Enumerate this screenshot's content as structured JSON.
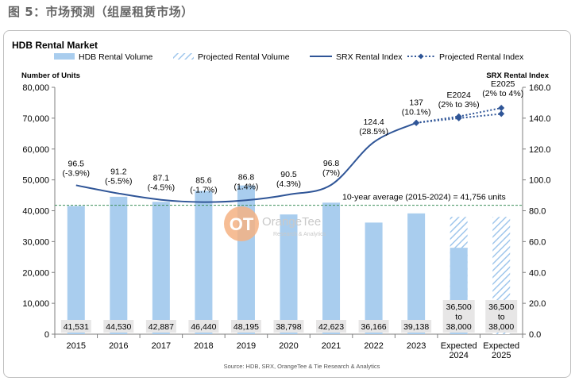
{
  "figure_title": "图 5：市场预测（组屋租赁市场）",
  "chart_data": {
    "type": "bar",
    "title": "HDB Rental Market",
    "ylabel_left": "Number of Units",
    "ylabel_right": "SRX Rental Index",
    "ylim_left": [
      0,
      80000
    ],
    "ylim_right": [
      0,
      160
    ],
    "left_ticks": [
      "0",
      "10,000",
      "20,000",
      "30,000",
      "40,000",
      "50,000",
      "60,000",
      "70,000",
      "80,000"
    ],
    "right_ticks": [
      "0.0",
      "20.0",
      "40.0",
      "60.0",
      "80.0",
      "100.0",
      "120.0",
      "140.0",
      "160.0"
    ],
    "categories": [
      [
        "2015"
      ],
      [
        "2016"
      ],
      [
        "2017"
      ],
      [
        "2018"
      ],
      [
        "2019"
      ],
      [
        "2020"
      ],
      [
        "2021"
      ],
      [
        "2022"
      ],
      [
        "2023"
      ],
      [
        "Expected",
        "2024"
      ],
      [
        "Expected",
        "2025"
      ]
    ],
    "legend": [
      {
        "label": "HDB Rental Volume",
        "kind": "bar"
      },
      {
        "label": "Projected Rental Volume",
        "kind": "hatch"
      },
      {
        "label": "SRX Rental Index",
        "kind": "line"
      },
      {
        "label": "Projected Rental Index",
        "kind": "dotted"
      }
    ],
    "volume": [
      41531,
      44530,
      42887,
      46440,
      48195,
      38798,
      42623,
      36166,
      39138,
      null,
      null
    ],
    "volume_labels": [
      [
        "41,531"
      ],
      [
        "44,530"
      ],
      [
        "42,887"
      ],
      [
        "46,440"
      ],
      [
        "48,195"
      ],
      [
        "38,798"
      ],
      [
        "42,623"
      ],
      [
        "36,166"
      ],
      [
        "39,138"
      ],
      [
        "36,500",
        "to",
        "38,000"
      ],
      [
        "36,500",
        "to",
        "38,000"
      ]
    ],
    "projected_volume": [
      {
        "index": 9,
        "low": 28000,
        "high": 38000
      },
      {
        "index": 10,
        "low": 0,
        "high": 38000
      }
    ],
    "rental_index": [
      96.5,
      91.2,
      87.1,
      85.6,
      86.8,
      90.5,
      96.8,
      124.4,
      137
    ],
    "index_labels": [
      [
        "96.5",
        "(-3.9%)"
      ],
      [
        "91.2",
        "(-5.5%)"
      ],
      [
        "87.1",
        "(-4.5%)"
      ],
      [
        "85.6",
        "(-1.7%)"
      ],
      [
        "86.8",
        "(1.4%)"
      ],
      [
        "90.5",
        "(4.3%)"
      ],
      [
        "96.8",
        "(7%)"
      ],
      [
        "124.4",
        "(28.5%)"
      ],
      [
        "137",
        "(10.1%)"
      ]
    ],
    "projected_index": {
      "low": [
        137,
        140,
        142.8
      ],
      "high": [
        137,
        141.1,
        146.6
      ],
      "x_index": [
        8,
        9,
        10
      ],
      "labels": [
        {
          "index": 9,
          "lines": [
            "E2024",
            "(2% to 3%)"
          ]
        },
        {
          "index": 10,
          "lines": [
            "E2025",
            "(2% to 4%)"
          ]
        }
      ]
    },
    "average": {
      "value": 41756,
      "label": "10-year average (2015-2024) = 41,756 units"
    },
    "watermark": {
      "brand": "OrangeTee",
      "sub": "Research & Analytics"
    },
    "source": "Source: HDB, SRX, OrangeTee & Tie Research & Analytics",
    "colors": {
      "bar": "#a9cdee",
      "bar_edge": "#9bc3ea",
      "hatch": "#9fc6ec",
      "line": "#2f5597",
      "average": "#3d8f5a",
      "label_box": "#e7e6e6",
      "watermark": "#f4b183"
    }
  }
}
